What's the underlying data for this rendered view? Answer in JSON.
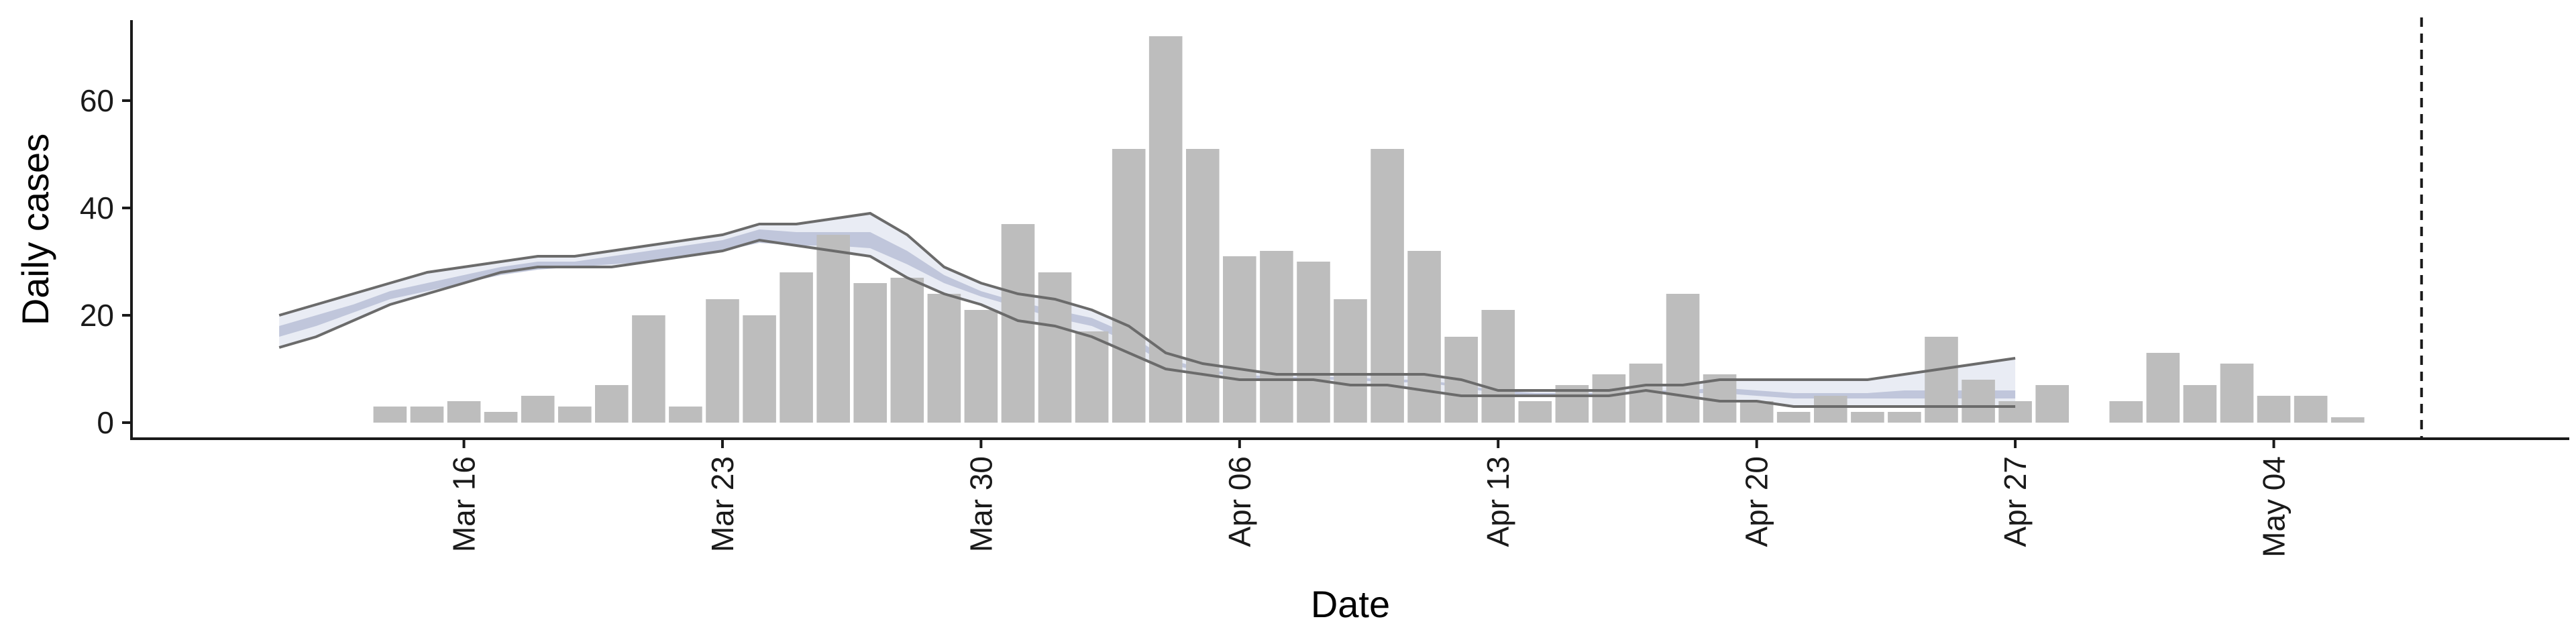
{
  "chart_data": {
    "type": "bar",
    "title": "",
    "xlabel": "Date",
    "ylabel": "Daily cases",
    "xlim": [
      "2020-03-07",
      "2020-05-12"
    ],
    "ylim": [
      -3,
      75
    ],
    "grid": false,
    "legend": "none",
    "y_ticks": [
      0,
      20,
      40,
      60
    ],
    "x_ticks": [
      {
        "date": "2020-03-16",
        "label": "Mar 16"
      },
      {
        "date": "2020-03-23",
        "label": "Mar 23"
      },
      {
        "date": "2020-03-30",
        "label": "Mar 30"
      },
      {
        "date": "2020-04-06",
        "label": "Apr 06"
      },
      {
        "date": "2020-04-13",
        "label": "Apr 13"
      },
      {
        "date": "2020-04-20",
        "label": "Apr 20"
      },
      {
        "date": "2020-04-27",
        "label": "Apr 27"
      },
      {
        "date": "2020-05-04",
        "label": "May 04"
      }
    ],
    "bars": {
      "color": "#bdbdbd",
      "dates": [
        "2020-03-14",
        "2020-03-15",
        "2020-03-16",
        "2020-03-17",
        "2020-03-18",
        "2020-03-19",
        "2020-03-20",
        "2020-03-21",
        "2020-03-22",
        "2020-03-23",
        "2020-03-24",
        "2020-03-25",
        "2020-03-26",
        "2020-03-27",
        "2020-03-28",
        "2020-03-29",
        "2020-03-30",
        "2020-03-31",
        "2020-04-01",
        "2020-04-02",
        "2020-04-03",
        "2020-04-04",
        "2020-04-05",
        "2020-04-06",
        "2020-04-07",
        "2020-04-08",
        "2020-04-09",
        "2020-04-10",
        "2020-04-11",
        "2020-04-12",
        "2020-04-13",
        "2020-04-14",
        "2020-04-15",
        "2020-04-16",
        "2020-04-17",
        "2020-04-18",
        "2020-04-19",
        "2020-04-20",
        "2020-04-21",
        "2020-04-22",
        "2020-04-23",
        "2020-04-24",
        "2020-04-25",
        "2020-04-26",
        "2020-04-27",
        "2020-04-28",
        "2020-04-29",
        "2020-04-30",
        "2020-05-01",
        "2020-05-02",
        "2020-05-03",
        "2020-05-04",
        "2020-05-05",
        "2020-05-06"
      ],
      "values": [
        3,
        3,
        4,
        2,
        5,
        3,
        7,
        20,
        3,
        23,
        20,
        28,
        35,
        26,
        27,
        24,
        21,
        37,
        28,
        17,
        51,
        72,
        51,
        31,
        32,
        30,
        23,
        51,
        32,
        16,
        21,
        4,
        7,
        9,
        11,
        24,
        9,
        4,
        2,
        5,
        2,
        2,
        16,
        8,
        4,
        7,
        0,
        4,
        13,
        7,
        11,
        5,
        5,
        1
      ]
    },
    "band": {
      "outer_color": "#e9ecf4",
      "inner_color": "#b8c0d6",
      "line_color": "#6b6b6b",
      "dates": [
        "2020-03-11",
        "2020-03-12",
        "2020-03-13",
        "2020-03-14",
        "2020-03-15",
        "2020-03-16",
        "2020-03-17",
        "2020-03-18",
        "2020-03-19",
        "2020-03-20",
        "2020-03-21",
        "2020-03-22",
        "2020-03-23",
        "2020-03-24",
        "2020-03-25",
        "2020-03-26",
        "2020-03-27",
        "2020-03-28",
        "2020-03-29",
        "2020-03-30",
        "2020-03-31",
        "2020-04-01",
        "2020-04-02",
        "2020-04-03",
        "2020-04-04",
        "2020-04-05",
        "2020-04-06",
        "2020-04-07",
        "2020-04-08",
        "2020-04-09",
        "2020-04-10",
        "2020-04-11",
        "2020-04-12",
        "2020-04-13",
        "2020-04-14",
        "2020-04-15",
        "2020-04-16",
        "2020-04-17",
        "2020-04-18",
        "2020-04-19",
        "2020-04-20",
        "2020-04-21",
        "2020-04-22",
        "2020-04-23",
        "2020-04-24",
        "2020-04-25",
        "2020-04-26",
        "2020-04-27"
      ],
      "upper": [
        20,
        22,
        24,
        26,
        28,
        29,
        30,
        31,
        31,
        32,
        33,
        34,
        35,
        37,
        37,
        38,
        39,
        35,
        29,
        26,
        24,
        23,
        21,
        18,
        13,
        11,
        10,
        9,
        9,
        9,
        9,
        9,
        8,
        6,
        6,
        6,
        6,
        7,
        7,
        8,
        8,
        8,
        8,
        8,
        9,
        10,
        11,
        12
      ],
      "inner_upper": [
        18,
        20,
        22,
        24.5,
        26,
        27.5,
        29,
        30,
        30,
        31,
        32,
        33,
        34,
        36,
        35.5,
        35.5,
        35.5,
        32,
        27.5,
        24.5,
        22.5,
        21,
        19.5,
        16.5,
        12,
        10,
        9,
        8.5,
        8.5,
        8.5,
        8,
        8,
        7,
        6,
        5.5,
        5.5,
        5.5,
        6,
        6,
        6.5,
        6,
        5.5,
        5.5,
        5.5,
        6,
        6,
        6,
        6
      ],
      "inner_lower": [
        16,
        18,
        20.5,
        23,
        24.5,
        26,
        27.5,
        28.5,
        29,
        29.5,
        30,
        31,
        32,
        33.5,
        33,
        33,
        32.5,
        29.5,
        26,
        23.5,
        21.5,
        19.5,
        18,
        15,
        11,
        9.5,
        8.5,
        8,
        8,
        8,
        7.5,
        7.5,
        6.5,
        5.5,
        5,
        5,
        5,
        5.5,
        5.5,
        5.5,
        5,
        4.5,
        4.5,
        4.5,
        4.5,
        4.5,
        4.5,
        4.5
      ],
      "lower": [
        14,
        16,
        19,
        22,
        24,
        26,
        28,
        29,
        29,
        29,
        30,
        31,
        32,
        34,
        33,
        32,
        31,
        27,
        24,
        22,
        19,
        18,
        16,
        13,
        10,
        9,
        8,
        8,
        8,
        7,
        7,
        6,
        5,
        5,
        5,
        5,
        5,
        6,
        5,
        4,
        4,
        3,
        3,
        3,
        3,
        3,
        3,
        3
      ]
    },
    "vline": {
      "date": "2020-05-08",
      "style": "dashed"
    }
  }
}
